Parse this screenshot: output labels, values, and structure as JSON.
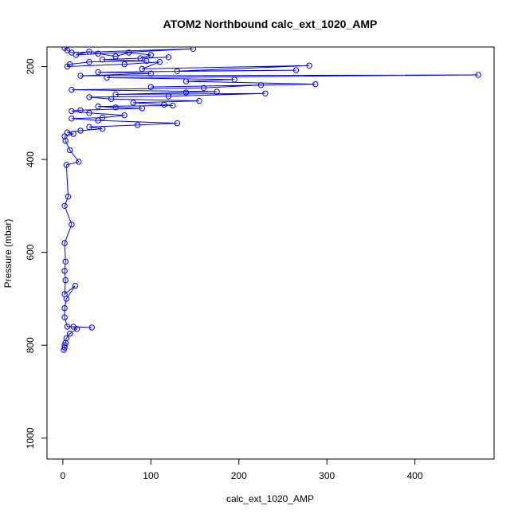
{
  "chart_data": {
    "type": "scatter",
    "title": "ATOM2 Northbound calc_ext_1020_AMP",
    "xlabel": "calc_ext_1020_AMP",
    "ylabel": "Pressure (mbar)",
    "xlim": [
      -18,
      490
    ],
    "ylim": [
      1045,
      158
    ],
    "y_inverted": true,
    "grid": false,
    "xticks": [
      0,
      100,
      200,
      300,
      400
    ],
    "yticks": [
      200,
      400,
      600,
      800,
      1000
    ],
    "style": {
      "color": "#0000ff",
      "marker": "open-circle",
      "connected": true
    },
    "series": [
      {
        "x": [
          2,
          5,
          10,
          148,
          15,
          30,
          40,
          60,
          75,
          100,
          88,
          120,
          45,
          95,
          30,
          8,
          5,
          70,
          110,
          90,
          280,
          130,
          265,
          40,
          100,
          20,
          472,
          50,
          195,
          140,
          287,
          100,
          225,
          160,
          10,
          175,
          140,
          60,
          230,
          120,
          30,
          55,
          155,
          80,
          115,
          125,
          40,
          60,
          90,
          20,
          10,
          30,
          70,
          45,
          10,
          40,
          130,
          85,
          30,
          45,
          20,
          5,
          12,
          2,
          3,
          8,
          18,
          4,
          6,
          2,
          10,
          2,
          3,
          2,
          3,
          2,
          14,
          4,
          2,
          2,
          5,
          33,
          12,
          16,
          8,
          4,
          3,
          2,
          2,
          1
        ],
        "y": [
          160,
          165,
          170,
          162,
          175,
          168,
          172,
          178,
          170,
          175,
          182,
          180,
          185,
          188,
          190,
          195,
          200,
          195,
          190,
          205,
          198,
          210,
          208,
          212,
          215,
          220,
          218,
          224,
          228,
          232,
          238,
          244,
          240,
          246,
          250,
          254,
          256,
          260,
          258,
          264,
          266,
          270,
          274,
          278,
          282,
          284,
          286,
          288,
          290,
          294,
          296,
          300,
          305,
          310,
          312,
          316,
          322,
          326,
          330,
          334,
          338,
          342,
          345,
          350,
          360,
          380,
          405,
          412,
          480,
          500,
          540,
          580,
          620,
          640,
          660,
          690,
          672,
          700,
          720,
          740,
          760,
          762,
          760,
          765,
          775,
          785,
          795,
          800,
          805,
          810
        ]
      }
    ]
  }
}
